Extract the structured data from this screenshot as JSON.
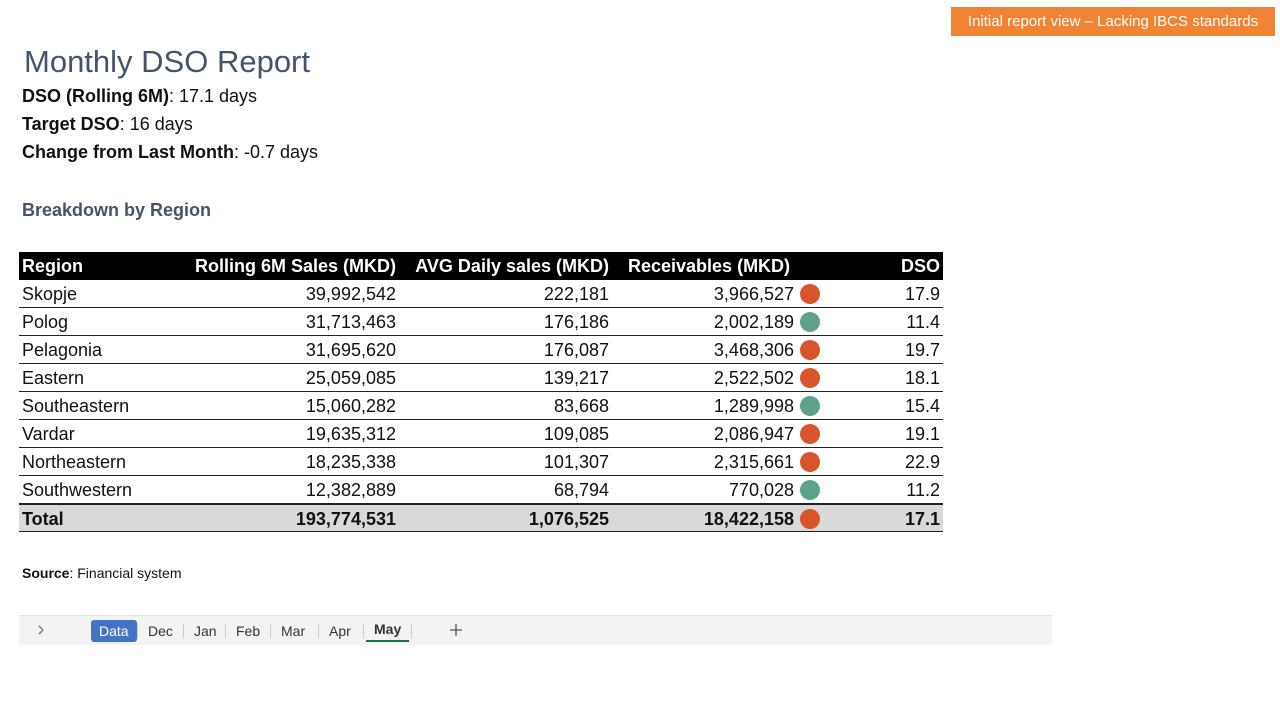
{
  "banner": "Initial report view – Lacking IBCS standards",
  "title": "Monthly DSO Report",
  "kpis": [
    {
      "label": "DSO (Rolling 6M)",
      "value": ": 17.1 days"
    },
    {
      "label": "Target DSO",
      "value": ": 16 days"
    },
    {
      "label": "Change from Last Month",
      "value": ": -0.7 days"
    }
  ],
  "section_title": "Breakdown by Region",
  "status_colors": {
    "red": "#d9532b",
    "green": "#5da389"
  },
  "table": {
    "header": [
      "Region",
      "Rolling 6M Sales (MKD)",
      "AVG Daily sales (MKD)",
      "Receivables (MKD)",
      "DSO"
    ],
    "rows": [
      [
        "Skopje",
        "39,992,542",
        "222,181",
        "3,966,527",
        "red",
        "17.9"
      ],
      [
        "Polog",
        "31,713,463",
        "176,186",
        "2,002,189",
        "green",
        "11.4"
      ],
      [
        "Pelagonia",
        "31,695,620",
        "176,087",
        "3,468,306",
        "red",
        "19.7"
      ],
      [
        "Eastern",
        "25,059,085",
        "139,217",
        "2,522,502",
        "red",
        "18.1"
      ],
      [
        "Southeastern",
        "15,060,282",
        "83,668",
        "1,289,998",
        "green",
        "15.4"
      ],
      [
        "Vardar",
        "19,635,312",
        "109,085",
        "2,086,947",
        "red",
        "19.1"
      ],
      [
        "Northeastern",
        "18,235,338",
        "101,307",
        "2,315,661",
        "red",
        "22.9"
      ],
      [
        "Southwestern",
        "12,382,889",
        "68,794",
        "770,028",
        "green",
        "11.2"
      ]
    ],
    "total": [
      "Total",
      "193,774,531",
      "1,076,525",
      "18,422,158",
      "red",
      "17.1"
    ]
  },
  "source": {
    "label": "Source",
    "value": ": Financial system"
  },
  "sheet_tabs": [
    "Data",
    "Dec",
    "Jan",
    "Feb",
    "Mar",
    "Apr",
    "May"
  ],
  "active_tab": "Data",
  "selected_tab": "May"
}
